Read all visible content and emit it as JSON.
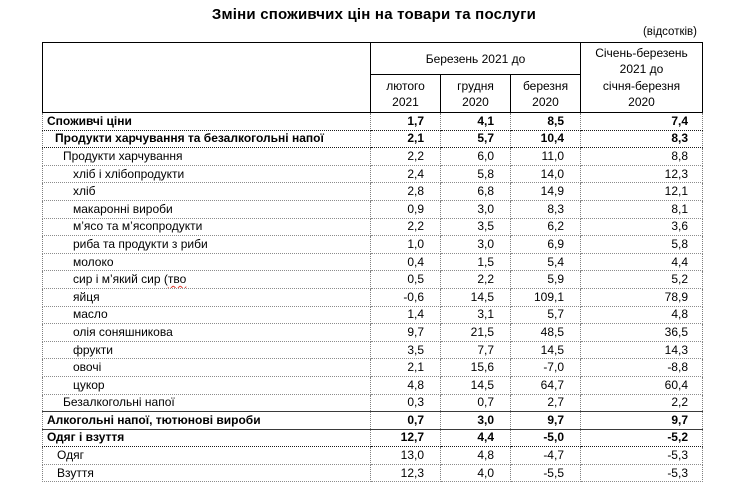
{
  "title": "Зміни споживчих цін на товари та послуги",
  "unit_note": "(відсотків)",
  "table": {
    "group_header": "Березень 2021 до",
    "sub_headers": [
      {
        "line1": "лютого",
        "line2": "2021"
      },
      {
        "line1": "грудня",
        "line2": "2020"
      },
      {
        "line1": "березня",
        "line2": "2020"
      }
    ],
    "period_header": {
      "line1": "Січень-березень",
      "line2": "2021 до",
      "line3": "січня-березня",
      "line4": "2020"
    },
    "rows": [
      {
        "label": "Споживчі ціни",
        "bold": true,
        "indent": 4,
        "sep": "dense",
        "values": [
          "1,7",
          "4,1",
          "8,5",
          "7,4"
        ]
      },
      {
        "label": "Продукти харчування  та безалкогольні напої",
        "bold": true,
        "indent": 12,
        "sep": "dense",
        "values": [
          "2,1",
          "5,7",
          "10,4",
          "8,3"
        ]
      },
      {
        "label": "Продукти харчування",
        "bold": false,
        "indent": 20,
        "sep": "dot",
        "values": [
          "2,2",
          "6,0",
          "11,0",
          "8,8"
        ]
      },
      {
        "label": "хліб і хлібопродукти",
        "bold": false,
        "indent": 30,
        "sep": "dot",
        "values": [
          "2,4",
          "5,8",
          "14,0",
          "12,3"
        ]
      },
      {
        "label": "хліб",
        "bold": false,
        "indent": 30,
        "sep": "dot",
        "values": [
          "2,8",
          "6,8",
          "14,9",
          "12,1"
        ]
      },
      {
        "label": "макаронні вироби",
        "bold": false,
        "indent": 30,
        "sep": "dot",
        "values": [
          "0,9",
          "3,0",
          "8,3",
          "8,1"
        ]
      },
      {
        "label": "м’ясо та м’ясопродукти",
        "bold": false,
        "indent": 30,
        "sep": "dot",
        "values": [
          "2,2",
          "3,5",
          "6,2",
          "3,6"
        ]
      },
      {
        "label": "риба та продукти з риби",
        "bold": false,
        "indent": 30,
        "sep": "dot",
        "values": [
          "1,0",
          "3,0",
          "6,9",
          "5,8"
        ]
      },
      {
        "label": "молоко",
        "bold": false,
        "indent": 30,
        "sep": "dot",
        "values": [
          "0,4",
          "1,5",
          "5,4",
          "4,4"
        ]
      },
      {
        "label": "сир і м’який сир (",
        "misspelled": "тво",
        "bold": false,
        "indent": 30,
        "sep": "dot",
        "values": [
          "0,5",
          "2,2",
          "5,9",
          "5,2"
        ]
      },
      {
        "label": "яйця",
        "bold": false,
        "indent": 30,
        "sep": "dot",
        "values": [
          "-0,6",
          "14,5",
          "109,1",
          "78,9"
        ]
      },
      {
        "label": "масло",
        "bold": false,
        "indent": 30,
        "sep": "dot",
        "values": [
          "1,4",
          "3,1",
          "5,7",
          "4,8"
        ]
      },
      {
        "label": "олія соняшникова",
        "bold": false,
        "indent": 30,
        "sep": "dot",
        "values": [
          "9,7",
          "21,5",
          "48,5",
          "36,5"
        ]
      },
      {
        "label": "фрукти",
        "bold": false,
        "indent": 30,
        "sep": "dot",
        "values": [
          "3,5",
          "7,7",
          "14,5",
          "14,3"
        ]
      },
      {
        "label": "овочі",
        "bold": false,
        "indent": 30,
        "sep": "dot",
        "values": [
          "2,1",
          "15,6",
          "-7,0",
          "-8,8"
        ]
      },
      {
        "label": "цукор",
        "bold": false,
        "indent": 30,
        "sep": "dot",
        "values": [
          "4,8",
          "14,5",
          "64,7",
          "60,4"
        ]
      },
      {
        "label": "Безалкогольні напої",
        "bold": false,
        "indent": 20,
        "sep": "solid",
        "values": [
          "0,3",
          "0,7",
          "2,7",
          "2,2"
        ]
      },
      {
        "label": "Алкогольні напої, тютюнові вироби",
        "bold": true,
        "indent": 4,
        "sep": "solid",
        "values": [
          "0,7",
          "3,0",
          "9,7",
          "9,7"
        ]
      },
      {
        "label": "Одяг і взуття",
        "bold": true,
        "indent": 4,
        "sep": "dense",
        "values": [
          "12,7",
          "4,4",
          "-5,0",
          "-5,2"
        ]
      },
      {
        "label": "Одяг",
        "bold": false,
        "indent": 14,
        "sep": "dot",
        "values": [
          "13,0",
          "4,8",
          "-4,7",
          "-5,3"
        ]
      },
      {
        "label": "Взуття",
        "bold": false,
        "indent": 14,
        "sep": "dot",
        "values": [
          "12,3",
          "4,0",
          "-5,5",
          "-5,3"
        ]
      }
    ]
  }
}
